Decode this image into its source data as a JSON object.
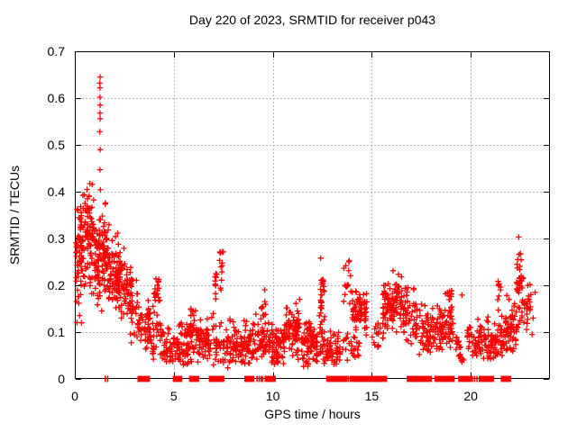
{
  "chart_data": {
    "type": "scatter",
    "title": "Day 220 of 2023, SRMTID for receiver p043",
    "xlabel": "GPS time / hours",
    "ylabel": "SRMTID / TECUs",
    "xlim": [
      0,
      24
    ],
    "ylim": [
      0,
      0.7
    ],
    "xticks": [
      0,
      5,
      10,
      15,
      20
    ],
    "xticklabels": [
      "0",
      "5",
      "10",
      "15",
      "20"
    ],
    "yticks": [
      0,
      0.1,
      0.2,
      0.3,
      0.4,
      0.5,
      0.6,
      0.7
    ],
    "yticklabels": [
      "0",
      "0.1",
      "0.2",
      "0.3",
      "0.4",
      "0.5",
      "0.6",
      "0.7"
    ],
    "grid": true,
    "grid_style": "dashed",
    "legend": "none",
    "marker": "plus",
    "marker_color": "#ff0000",
    "grid_color": "#b4b4b4",
    "axis_color": "#000000",
    "series_description": "Single red-plus scatter series: dense cloud 0-2.3h (0.13-0.42 TECUs) with isolated spike column at ~1.27h reaching 0.645; decay to a 0.03-0.15 band through 4-12h; tall columns near 7.3h (0.27), 12.5h (0.27), 13.7h (0.26); broad humps at 14-14.7h (~0.15), 15.6-17.3h (to 0.25), 18.4-19h; rising tail 21.7-23h peaking 0.30 at 22.4h; many exact-zero samples forming blocks on the baseline",
    "clusters": [
      [
        0.05,
        0.35,
        55,
        0.27,
        0.27,
        0.075,
        0.115,
        0.425
      ],
      [
        0.3,
        0.95,
        95,
        0.3,
        0.3,
        0.055,
        0.17,
        0.42
      ],
      [
        0.95,
        1.65,
        115,
        0.275,
        0.26,
        0.055,
        0.14,
        0.4
      ],
      [
        1.65,
        2.35,
        95,
        0.235,
        0.21,
        0.045,
        0.13,
        0.34
      ],
      [
        2.35,
        3.3,
        85,
        0.2,
        0.13,
        0.035,
        0.06,
        0.3
      ],
      [
        3.3,
        4.0,
        60,
        0.115,
        0.09,
        0.03,
        0.04,
        0.2
      ],
      [
        4.3,
        5.35,
        70,
        0.07,
        0.07,
        0.025,
        0.025,
        0.13
      ],
      [
        5.35,
        6.05,
        60,
        0.075,
        0.08,
        0.028,
        0.03,
        0.145
      ],
      [
        6.1,
        6.85,
        60,
        0.08,
        0.075,
        0.026,
        0.03,
        0.14
      ],
      [
        6.85,
        7.6,
        40,
        0.08,
        0.08,
        0.03,
        0.03,
        0.145
      ],
      [
        7.6,
        8.55,
        65,
        0.075,
        0.06,
        0.025,
        0.02,
        0.13
      ],
      [
        8.55,
        9.75,
        90,
        0.075,
        0.08,
        0.028,
        0.03,
        0.15
      ],
      [
        9.75,
        10.55,
        70,
        0.07,
        0.07,
        0.024,
        0.03,
        0.12
      ],
      [
        10.55,
        11.35,
        90,
        0.095,
        0.1,
        0.03,
        0.04,
        0.17
      ],
      [
        11.35,
        12.25,
        80,
        0.07,
        0.065,
        0.024,
        0.025,
        0.125
      ],
      [
        12.2,
        12.85,
        30,
        0.06,
        0.06,
        0.02,
        0.03,
        0.1
      ],
      [
        12.4,
        12.6,
        8,
        0.205,
        0.205,
        0.008,
        0.19,
        0.22
      ],
      [
        12.85,
        13.4,
        40,
        0.065,
        0.06,
        0.02,
        0.03,
        0.12
      ],
      [
        13.5,
        14.0,
        12,
        0.07,
        0.07,
        0.02,
        0.04,
        0.1
      ],
      [
        14.0,
        14.75,
        70,
        0.15,
        0.14,
        0.025,
        0.09,
        0.2
      ],
      [
        14.0,
        14.6,
        15,
        0.065,
        0.065,
        0.015,
        0.04,
        0.09
      ],
      [
        14.95,
        15.45,
        15,
        0.085,
        0.085,
        0.018,
        0.055,
        0.12
      ],
      [
        15.55,
        16.35,
        90,
        0.14,
        0.175,
        0.033,
        0.08,
        0.25
      ],
      [
        16.35,
        17.3,
        80,
        0.165,
        0.125,
        0.03,
        0.07,
        0.23
      ],
      [
        17.4,
        18.35,
        70,
        0.1,
        0.095,
        0.028,
        0.05,
        0.17
      ],
      [
        18.4,
        19.1,
        70,
        0.105,
        0.115,
        0.028,
        0.05,
        0.19
      ],
      [
        18.85,
        19.05,
        8,
        0.18,
        0.18,
        0.008,
        0.165,
        0.195
      ],
      [
        19.1,
        19.65,
        22,
        0.105,
        0.03,
        0.013,
        0.015,
        0.13
      ],
      [
        19.8,
        20.55,
        50,
        0.08,
        0.075,
        0.022,
        0.04,
        0.13
      ],
      [
        20.6,
        21.3,
        55,
        0.085,
        0.08,
        0.024,
        0.04,
        0.14
      ],
      [
        21.3,
        21.75,
        25,
        0.08,
        0.08,
        0.022,
        0.04,
        0.13
      ],
      [
        21.75,
        22.3,
        55,
        0.1,
        0.11,
        0.028,
        0.05,
        0.18
      ],
      [
        22.35,
        22.6,
        10,
        0.21,
        0.21,
        0.02,
        0.17,
        0.25
      ],
      [
        22.65,
        23.05,
        25,
        0.16,
        0.15,
        0.025,
        0.1,
        0.21
      ]
    ],
    "columns": [
      [
        3.95,
        4.3,
        28,
        0.06,
        0.215
      ],
      [
        5.85,
        6.1,
        8,
        0.135,
        0.16
      ],
      [
        7.05,
        7.2,
        10,
        0.17,
        0.25
      ],
      [
        7.3,
        7.5,
        12,
        0.19,
        0.275
      ],
      [
        9.4,
        9.65,
        8,
        0.13,
        0.215
      ],
      [
        12.35,
        12.65,
        24,
        0.1,
        0.265
      ],
      [
        13.55,
        13.95,
        16,
        0.15,
        0.26
      ],
      [
        21.35,
        21.6,
        10,
        0.13,
        0.21
      ],
      [
        22.3,
        22.65,
        32,
        0.1,
        0.285
      ]
    ],
    "points": [
      [
        1.28,
        0.645
      ],
      [
        1.26,
        0.632
      ],
      [
        1.27,
        0.622
      ],
      [
        1.27,
        0.602
      ],
      [
        1.28,
        0.585
      ],
      [
        1.27,
        0.568
      ],
      [
        1.28,
        0.556
      ],
      [
        1.26,
        0.528
      ],
      [
        1.28,
        0.49
      ],
      [
        1.27,
        0.447
      ],
      [
        1.29,
        0.404
      ],
      [
        19.55,
        0.179
      ],
      [
        22.42,
        0.303
      ],
      [
        23.15,
        0.13
      ],
      [
        23.25,
        0.185
      ],
      [
        23.1,
        0.095
      ]
    ],
    "zero_runs": [
      [
        1.52,
        1.56
      ],
      [
        1.64,
        1.68
      ],
      [
        3.3,
        3.66
      ],
      [
        5.08,
        5.3
      ],
      [
        5.9,
        6.14
      ],
      [
        6.9,
        7.12
      ],
      [
        7.2,
        7.42
      ],
      [
        8.7,
        8.94
      ],
      [
        9.2,
        9.22
      ],
      [
        9.3,
        9.32
      ],
      [
        9.4,
        9.42
      ],
      [
        9.48,
        9.5
      ],
      [
        9.72,
        10.02
      ],
      [
        12.83,
        13.36
      ],
      [
        13.44,
        13.62
      ],
      [
        13.7,
        13.72
      ],
      [
        13.8,
        13.82
      ],
      [
        13.9,
        13.92
      ],
      [
        14.05,
        14.25
      ],
      [
        14.5,
        15.27
      ],
      [
        15.33,
        15.64
      ],
      [
        16.9,
        17.15
      ],
      [
        17.2,
        17.9
      ],
      [
        18.3,
        18.6
      ],
      [
        18.82,
        19.05
      ],
      [
        19.5,
        19.92
      ],
      [
        20.06,
        20.09
      ],
      [
        20.18,
        20.21
      ],
      [
        20.3,
        20.33
      ],
      [
        20.42,
        20.45
      ],
      [
        20.58,
        21.05
      ],
      [
        21.65,
        21.9
      ]
    ]
  }
}
